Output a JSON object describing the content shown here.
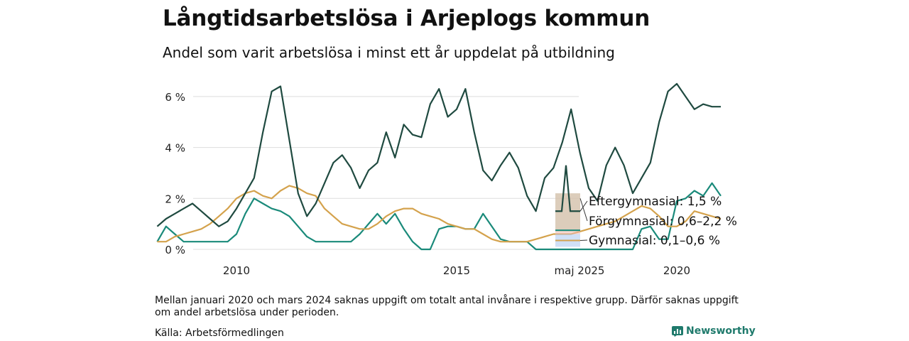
{
  "title": "Långtidsarbetslösa i Arjeplogs kommun",
  "subtitle": "Andel som varit arbetslösa i minst ett år uppdelat på utbildning",
  "note": "Mellan januari 2020 och mars 2024 saknas uppgift om totalt antal invånare i respektive grupp. Därför saknas uppgift om andel arbetslösa under perioden.",
  "source": "Källa: Arbetsförmedlingen",
  "brand": "Newsworthy",
  "colors": {
    "eftergymnasial": "#1f4a40",
    "forgymnasial": "#d4a24c",
    "gymnasial": "#1a8a7a",
    "grid": "#dddddd"
  },
  "chart_data": {
    "type": "line",
    "ylim": [
      0,
      7
    ],
    "yticks": [
      0,
      2,
      4,
      6
    ],
    "ytick_labels": [
      "0 %",
      "2 %",
      "4 %",
      "6 %"
    ],
    "xlim": [
      2008.2,
      2021.0
    ],
    "xticks": [
      2010,
      2015,
      2020
    ],
    "xtick_labels": [
      "2010",
      "2015",
      "2020"
    ],
    "grid": true,
    "series": [
      {
        "name": "Eftergymnasial",
        "key": "eftergymnasial",
        "x": [
          2008.2,
          2008.4,
          2008.6,
          2008.8,
          2009.0,
          2009.2,
          2009.4,
          2009.6,
          2009.8,
          2010.0,
          2010.2,
          2010.4,
          2010.6,
          2010.8,
          2011.0,
          2011.2,
          2011.4,
          2011.6,
          2011.8,
          2012.0,
          2012.2,
          2012.4,
          2012.6,
          2012.8,
          2013.0,
          2013.2,
          2013.4,
          2013.6,
          2013.8,
          2014.0,
          2014.2,
          2014.4,
          2014.6,
          2014.8,
          2015.0,
          2015.2,
          2015.4,
          2015.6,
          2015.8,
          2016.0,
          2016.2,
          2016.4,
          2016.6,
          2016.8,
          2017.0,
          2017.2,
          2017.4,
          2017.6,
          2017.8,
          2018.0,
          2018.2,
          2018.4,
          2018.6,
          2018.8,
          2019.0,
          2019.2,
          2019.4,
          2019.6,
          2019.8,
          2020.0,
          2020.2,
          2020.4,
          2020.6,
          2020.8,
          2021.0
        ],
        "values": [
          0.9,
          1.2,
          1.4,
          1.6,
          1.8,
          1.5,
          1.2,
          0.9,
          1.1,
          1.6,
          2.2,
          2.8,
          4.6,
          6.2,
          6.4,
          4.3,
          2.2,
          1.3,
          1.8,
          2.6,
          3.4,
          3.7,
          3.2,
          2.4,
          3.1,
          3.4,
          4.6,
          3.6,
          4.9,
          4.5,
          4.4,
          5.7,
          6.3,
          5.2,
          5.5,
          6.3,
          4.6,
          3.1,
          2.7,
          3.3,
          3.8,
          3.2,
          2.1,
          1.5,
          2.8,
          3.2,
          4.2,
          5.5,
          3.8,
          2.4,
          1.9,
          3.3,
          4.0,
          3.3,
          2.2,
          2.8,
          3.4,
          5.0,
          6.2,
          6.5,
          6.0,
          5.5,
          5.7,
          5.6,
          5.6
        ]
      },
      {
        "name": "Förgymnasial",
        "key": "forgymnasial",
        "x": [
          2008.2,
          2008.4,
          2008.6,
          2008.8,
          2009.0,
          2009.2,
          2009.4,
          2009.6,
          2009.8,
          2010.0,
          2010.2,
          2010.4,
          2010.6,
          2010.8,
          2011.0,
          2011.2,
          2011.4,
          2011.6,
          2011.8,
          2012.0,
          2012.2,
          2012.4,
          2012.6,
          2012.8,
          2013.0,
          2013.2,
          2013.4,
          2013.6,
          2013.8,
          2014.0,
          2014.2,
          2014.4,
          2014.6,
          2014.8,
          2015.0,
          2015.2,
          2015.4,
          2015.6,
          2015.8,
          2016.0,
          2016.2,
          2016.4,
          2016.6,
          2016.8,
          2017.0,
          2017.2,
          2017.4,
          2017.6,
          2017.8,
          2018.0,
          2018.2,
          2018.4,
          2018.6,
          2018.8,
          2019.0,
          2019.2,
          2019.4,
          2019.6,
          2019.8,
          2020.0,
          2020.2,
          2020.4,
          2020.6,
          2020.8,
          2021.0
        ],
        "values": [
          0.3,
          0.3,
          0.5,
          0.6,
          0.7,
          0.8,
          1.0,
          1.3,
          1.6,
          2.0,
          2.2,
          2.3,
          2.1,
          2.0,
          2.3,
          2.5,
          2.4,
          2.2,
          2.1,
          1.6,
          1.3,
          1.0,
          0.9,
          0.8,
          0.8,
          1.0,
          1.3,
          1.5,
          1.6,
          1.6,
          1.4,
          1.3,
          1.2,
          1.0,
          0.9,
          0.8,
          0.8,
          0.6,
          0.4,
          0.3,
          0.3,
          0.3,
          0.3,
          0.4,
          0.5,
          0.6,
          0.6,
          0.6,
          0.7,
          0.8,
          0.9,
          1.0,
          1.1,
          1.3,
          1.5,
          1.7,
          1.6,
          1.3,
          0.9,
          0.9,
          1.1,
          1.5,
          1.4,
          1.3,
          1.2
        ]
      },
      {
        "name": "Gymnasial",
        "key": "gymnasial",
        "x": [
          2008.2,
          2008.4,
          2008.6,
          2008.8,
          2009.0,
          2009.2,
          2009.4,
          2009.6,
          2009.8,
          2010.0,
          2010.2,
          2010.4,
          2010.6,
          2010.8,
          2011.0,
          2011.2,
          2011.4,
          2011.6,
          2011.8,
          2012.0,
          2012.2,
          2012.4,
          2012.6,
          2012.8,
          2013.0,
          2013.2,
          2013.4,
          2013.6,
          2013.8,
          2014.0,
          2014.2,
          2014.4,
          2014.6,
          2014.8,
          2015.0,
          2015.2,
          2015.4,
          2015.6,
          2015.8,
          2016.0,
          2016.2,
          2016.4,
          2016.6,
          2016.8,
          2017.0,
          2017.2,
          2017.4,
          2017.6,
          2017.8,
          2018.0,
          2018.2,
          2018.4,
          2018.6,
          2018.8,
          2019.0,
          2019.2,
          2019.4,
          2019.6,
          2019.8,
          2020.0,
          2020.2,
          2020.4,
          2020.6,
          2020.8,
          2021.0
        ],
        "values": [
          0.3,
          0.9,
          0.6,
          0.3,
          0.3,
          0.3,
          0.3,
          0.3,
          0.3,
          0.6,
          1.4,
          2.0,
          1.8,
          1.6,
          1.5,
          1.3,
          0.9,
          0.5,
          0.3,
          0.3,
          0.3,
          0.3,
          0.3,
          0.6,
          1.0,
          1.4,
          1.0,
          1.4,
          0.8,
          0.3,
          0.0,
          0.0,
          0.8,
          0.9,
          0.9,
          0.8,
          0.8,
          1.4,
          0.9,
          0.4,
          0.3,
          0.3,
          0.3,
          0.0,
          0.0,
          0.0,
          0.0,
          0.0,
          0.0,
          0.0,
          0.0,
          0.0,
          0.0,
          0.0,
          0.0,
          0.8,
          0.9,
          0.4,
          0.4,
          1.9,
          2.0,
          2.3,
          2.1,
          2.6,
          2.1
        ]
      }
    ],
    "latest": {
      "label": "maj 2025",
      "series": [
        {
          "key": "eftergymnasial",
          "label": "Eftergymnasial: 1,5 %",
          "value": 1.5,
          "range": [
            0.7,
            2.2
          ],
          "peak": 3.3
        },
        {
          "key": "forgymnasial",
          "label": "Förgymnasial: 0,6–2,2 %",
          "value": 0.6,
          "range": [
            0.6,
            2.2
          ]
        },
        {
          "key": "gymnasial",
          "label": "Gymnasial: 0,1–0,6 %",
          "value": 0.35,
          "range": [
            0.1,
            0.6
          ]
        }
      ]
    }
  }
}
